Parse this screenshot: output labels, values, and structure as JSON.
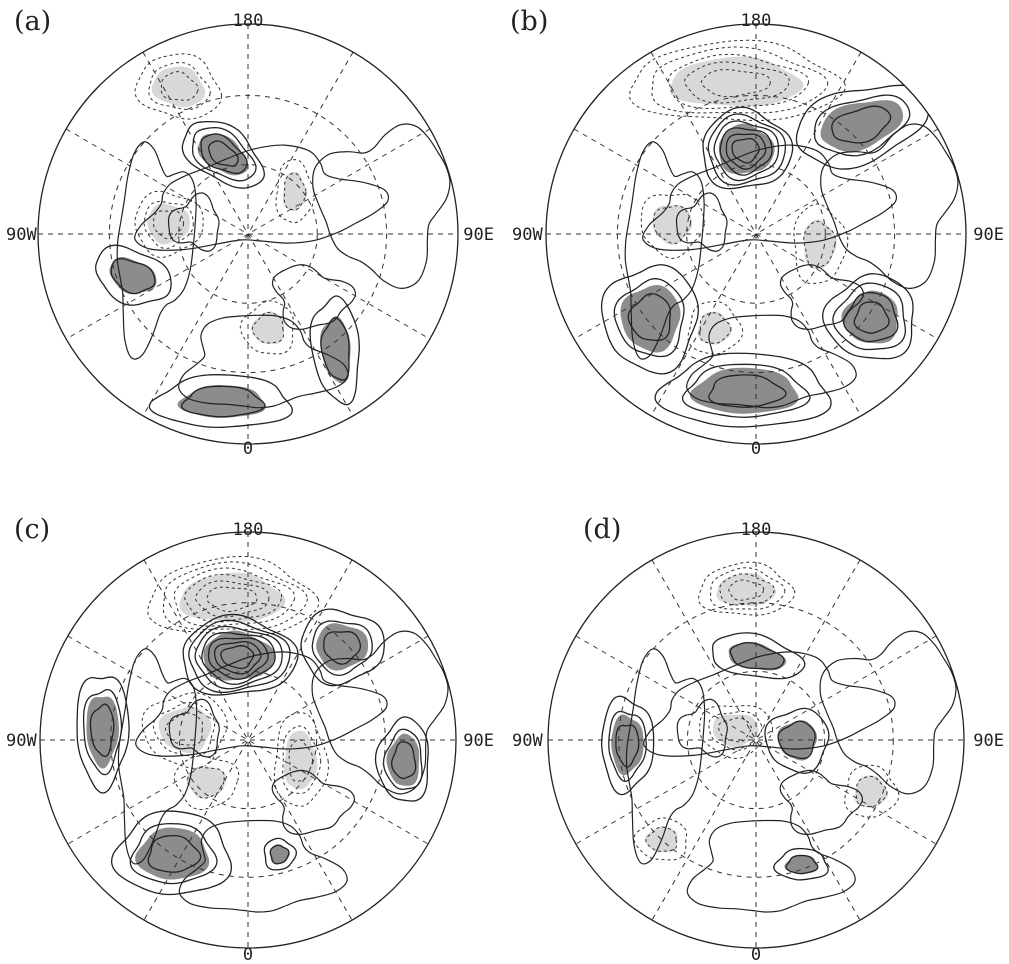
{
  "panels": [
    {
      "id": "a",
      "label": "(a)",
      "top": "180",
      "bottom": "0",
      "left": "90W",
      "right": "90E"
    },
    {
      "id": "b",
      "label": "(b)",
      "top": "180",
      "bottom": "0",
      "left": "90W",
      "right": "90E"
    },
    {
      "id": "c",
      "label": "(c)",
      "top": "180",
      "bottom": "0",
      "left": "90W",
      "right": "90E"
    },
    {
      "id": "d",
      "label": "(d)",
      "top": "180",
      "bottom": "0",
      "left": "90W",
      "right": "90E"
    }
  ],
  "colors": {
    "positive_shading": "#8c8c8c",
    "negative_shading": "#d8d8d8",
    "lines": "#222222"
  }
}
